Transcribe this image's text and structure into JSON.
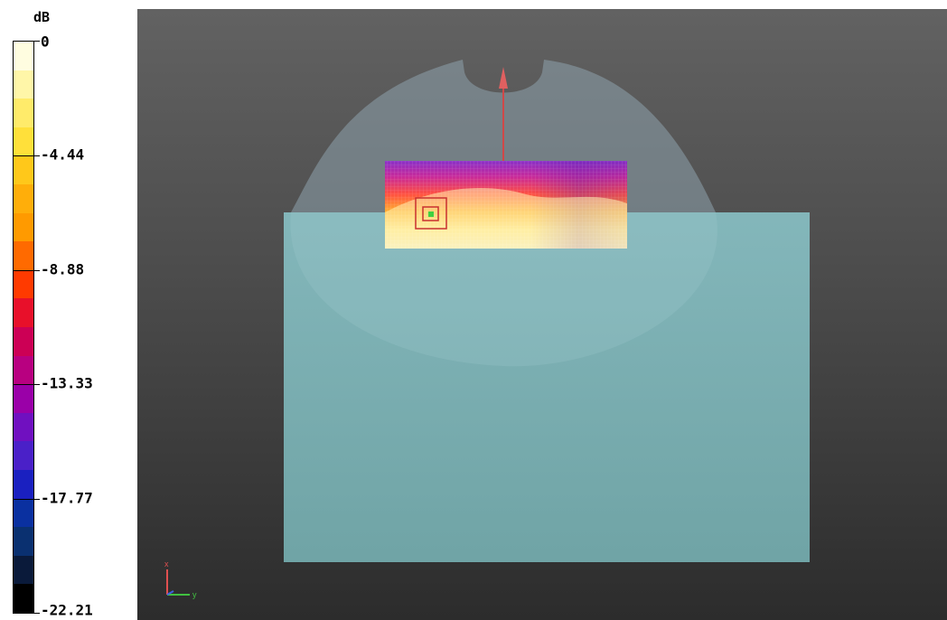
{
  "legend": {
    "unit": "dB",
    "ticks": [
      "0",
      "-4.44",
      "-8.88",
      "-13.33",
      "-17.77",
      "-22.21"
    ],
    "colors": [
      "#fffde0",
      "#fff6a8",
      "#ffeb6a",
      "#ffe03a",
      "#ffc81a",
      "#ffae0a",
      "#ff9a00",
      "#ff6a00",
      "#ff3a00",
      "#e8102a",
      "#cc0055",
      "#b80080",
      "#9a00a8",
      "#7010c0",
      "#4a20c8",
      "#1a20c0",
      "#0a30a0",
      "#0a3070",
      "#0a1a3a",
      "#000000"
    ]
  },
  "viewport": {
    "axes": {
      "x_label": "x",
      "y_label": "y"
    },
    "colors": {
      "phantom_shell": "#8ea3ad",
      "tissue_box": "#7fb6ba",
      "beam_arrow": "#e05050",
      "peak_marker": "#c83030",
      "peak_point": "#40d040"
    }
  }
}
